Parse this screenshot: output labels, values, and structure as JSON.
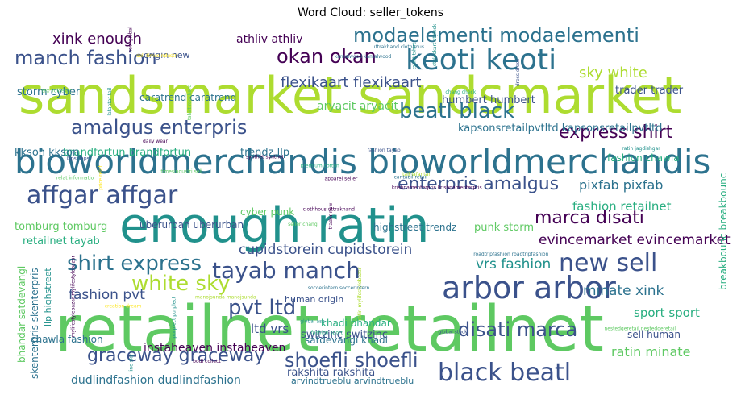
{
  "title": "Word Cloud: seller_tokens",
  "palette": [
    "#440154",
    "#3b528b",
    "#2c728e",
    "#21918c",
    "#28ae80",
    "#5ec962",
    "#addc30",
    "#fde725"
  ],
  "chart_data": {
    "type": "wordcloud",
    "title": "Word Cloud: seller_tokens",
    "colormap": "viridis",
    "words": [
      {
        "text": "sandsmarket sandsmarket",
        "weight": 1.0
      },
      {
        "text": "retailnet retailnet",
        "weight": 0.98
      },
      {
        "text": "enough ratin",
        "weight": 0.92
      },
      {
        "text": "bioworldmerchandis bioworldmerchandis",
        "weight": 0.7
      },
      {
        "text": "keoti keoti",
        "weight": 0.48
      },
      {
        "text": "arbor arbor",
        "weight": 0.52
      },
      {
        "text": "affgar affgar",
        "weight": 0.45
      },
      {
        "text": "new sell",
        "weight": 0.44
      },
      {
        "text": "modaelementi modaelementi",
        "weight": 0.38
      },
      {
        "text": "manch fashion",
        "weight": 0.37
      },
      {
        "text": "tayab manch",
        "weight": 0.4
      },
      {
        "text": "black beatl",
        "weight": 0.4
      },
      {
        "text": "beatl black",
        "weight": 0.34
      },
      {
        "text": "amalgus enterpris",
        "weight": 0.35
      },
      {
        "text": "enterpris amalgus",
        "weight": 0.33
      },
      {
        "text": "express shirt",
        "weight": 0.33
      },
      {
        "text": "shirt express",
        "weight": 0.36
      },
      {
        "text": "pvt ltd",
        "weight": 0.36
      },
      {
        "text": "white sky",
        "weight": 0.34
      },
      {
        "text": "okan okan",
        "weight": 0.34
      },
      {
        "text": "marca disati",
        "weight": 0.33
      },
      {
        "text": "disati marca",
        "weight": 0.34
      },
      {
        "text": "shoefli shoefli",
        "weight": 0.32
      },
      {
        "text": "graceway graceway",
        "weight": 0.3
      },
      {
        "text": "sky white",
        "weight": 0.26
      },
      {
        "text": "flexikaart flexikaart",
        "weight": 0.24
      },
      {
        "text": "xink enough",
        "weight": 0.25
      },
      {
        "text": "cupidstorein cupidstorein",
        "weight": 0.26
      },
      {
        "text": "evincemarket evincemarket",
        "weight": 0.24
      },
      {
        "text": "fashion pvt",
        "weight": 0.25
      },
      {
        "text": "minate xink",
        "weight": 0.22
      },
      {
        "text": "vrs fashion",
        "weight": 0.22
      },
      {
        "text": "ratin minate",
        "weight": 0.22
      },
      {
        "text": "pixfab pixfab",
        "weight": 0.22
      },
      {
        "text": "fashion retailnet",
        "weight": 0.2
      },
      {
        "text": "ltd vrs",
        "weight": 0.22
      },
      {
        "text": "sport sport",
        "weight": 0.2
      },
      {
        "text": "kapsonsretailpvtltd kapsonsretailpvtltd",
        "weight": 0.17
      },
      {
        "text": "athliv athliv",
        "weight": 0.16
      },
      {
        "text": "aryacit aryacit",
        "weight": 0.17
      },
      {
        "text": "trader trader",
        "weight": 0.16
      },
      {
        "text": "humbert humbert",
        "weight": 0.14
      },
      {
        "text": "storm cyber",
        "weight": 0.16
      },
      {
        "text": "caratrend caratrend",
        "weight": 0.14
      },
      {
        "text": "brandfortun brandfortun",
        "weight": 0.15
      },
      {
        "text": "trendz llp",
        "weight": 0.15
      },
      {
        "text": "kkson kkson",
        "weight": 0.17
      },
      {
        "text": "tomburg tomburg",
        "weight": 0.17
      },
      {
        "text": "retailnet tayab",
        "weight": 0.17
      },
      {
        "text": "uberurban uberurban",
        "weight": 0.15
      },
      {
        "text": "highstreet trendz",
        "weight": 0.15
      },
      {
        "text": "cyber punk",
        "weight": 0.16
      },
      {
        "text": "punk storm",
        "weight": 0.16
      },
      {
        "text": "fashion chawla",
        "weight": 0.14
      },
      {
        "text": "origin new",
        "weight": 0.13
      },
      {
        "text": "khadi bhandar",
        "weight": 0.13
      },
      {
        "text": "satdevangi khadi",
        "weight": 0.13
      },
      {
        "text": "switzinc switzinc",
        "weight": 0.15
      },
      {
        "text": "human origin",
        "weight": 0.13
      },
      {
        "text": "sell human",
        "weight": 0.13
      },
      {
        "text": "chawla fashion",
        "weight": 0.15
      },
      {
        "text": "instaheaven instaheaven",
        "weight": 0.16
      },
      {
        "text": "dudlindfashion dudlindfashion",
        "weight": 0.16
      },
      {
        "text": "rakshita rakshita",
        "weight": 0.15
      },
      {
        "text": "arvindtrueblu arvindtrueblu",
        "weight": 0.14
      },
      {
        "text": "breakbounc breakbounc",
        "weight": 0.15
      },
      {
        "text": "bhandar satdevangi",
        "weight": 0.14
      },
      {
        "text": "skenterpris skenterpris",
        "weight": 0.13
      },
      {
        "text": "llp highstreet",
        "weight": 0.12
      },
      {
        "text": "trader new",
        "weight": 0.06
      },
      {
        "text": "clothhous uttrakhand",
        "weight": 0.06
      },
      {
        "text": "cantabil retail",
        "weight": 0.06
      },
      {
        "text": "styleskart styleskart",
        "weight": 0.06
      },
      {
        "text": "chang check",
        "weight": 0.06
      },
      {
        "text": "sell timesindustri",
        "weight": 0.06
      },
      {
        "text": "price relat",
        "weight": 0.06
      },
      {
        "text": "seller chang",
        "weight": 0.06
      },
      {
        "text": "line sky",
        "weight": 0.06
      },
      {
        "text": "fashion tayab",
        "weight": 0.06
      },
      {
        "text": "synthet synthet",
        "weight": 0.06
      },
      {
        "text": "purplect purplect",
        "weight": 0.06
      },
      {
        "text": "tail lafantar",
        "weight": 0.06
      },
      {
        "text": "lafantar tail",
        "weight": 0.06
      },
      {
        "text": "relat informatio",
        "weight": 0.06
      },
      {
        "text": "ratin jagdishgar",
        "weight": 0.06
      },
      {
        "text": "global asa",
        "weight": 0.06
      },
      {
        "text": "tshirt rockhard",
        "weight": 0.06
      },
      {
        "text": "manojsunda manojsunda",
        "weight": 0.06
      },
      {
        "text": "nestedgeretail nestedgeretail",
        "weight": 0.06
      },
      {
        "text": "uttrakhand clothhous",
        "weight": 0.06
      },
      {
        "text": "timesindustri sell",
        "weight": 0.06
      },
      {
        "text": "bodi collect",
        "weight": 0.05
      },
      {
        "text": "krishnamenterpris krishnamenterpris",
        "weight": 0.05
      },
      {
        "text": "fashion sport",
        "weight": 0.05
      },
      {
        "text": "creation dream",
        "weight": 0.05
      },
      {
        "text": "tex voicesoc",
        "weight": 0.05
      },
      {
        "text": "global stock",
        "weight": 0.05
      },
      {
        "text": "new global",
        "weight": 0.05
      },
      {
        "text": "ratin mylifestylebazar",
        "weight": 0.05
      },
      {
        "text": "kamalwood kamalwood",
        "weight": 0.05
      },
      {
        "text": "lapsi lapsi",
        "weight": 0.05
      },
      {
        "text": "dress dress",
        "weight": 0.05
      },
      {
        "text": "tshirt tshirt",
        "weight": 0.05
      },
      {
        "text": "apparel seller",
        "weight": 0.05
      },
      {
        "text": "soccerintern soccerintern",
        "weight": 0.05
      },
      {
        "text": "roadtripfashion roadtripfashion",
        "weight": 0.05
      },
      {
        "text": "mylifestylebazar mylifestylebazar",
        "weight": 0.05
      },
      {
        "text": "daily wear",
        "weight": 0.05
      },
      {
        "text": "premium cotton",
        "weight": 0.05
      }
    ]
  }
}
